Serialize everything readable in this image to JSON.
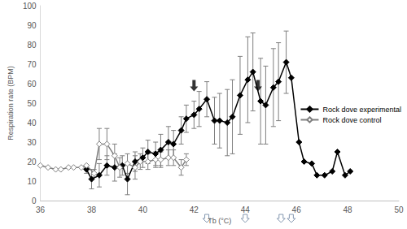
{
  "chart_data": {
    "type": "line",
    "x_label": "Tb (°C)",
    "y_label": "Respiration rate (BPM)",
    "xlim": [
      36,
      50
    ],
    "xticks": [
      36,
      38,
      40,
      42,
      44,
      46,
      48,
      50
    ],
    "ylim": [
      0,
      100
    ],
    "yticks": [
      0,
      10,
      20,
      30,
      40,
      50,
      60,
      70,
      80,
      90,
      100
    ],
    "grid": false,
    "legend": "right",
    "series": [
      {
        "name": "Rock dove experimental",
        "color": "#000000",
        "marker": "diamond",
        "line_style": "solid",
        "x": [
          37.8,
          38.0,
          38.3,
          38.6,
          38.9,
          39.2,
          39.4,
          39.7,
          40.0,
          40.2,
          40.5,
          40.7,
          41.0,
          41.2,
          41.5,
          41.7,
          42.0,
          42.2,
          42.5,
          42.8,
          43.0,
          43.3,
          43.5,
          43.8,
          44.1,
          44.3,
          44.6,
          44.8,
          45.1,
          45.3,
          45.6,
          45.8,
          46.1,
          46.3,
          46.6,
          46.8,
          47.1,
          47.4,
          47.6,
          47.9,
          48.1
        ],
        "values": [
          16,
          11,
          13,
          18,
          17,
          18,
          11,
          20,
          22,
          25,
          24,
          26,
          30,
          29,
          36,
          42,
          44,
          47,
          52,
          41,
          41,
          40,
          43,
          54,
          62,
          66,
          51,
          49,
          58,
          61,
          71,
          63,
          30,
          20,
          19,
          13,
          13,
          15,
          25,
          13,
          15
        ],
        "errors": [
          2,
          5,
          6,
          5,
          7,
          5,
          8,
          5,
          5,
          6,
          6,
          8,
          8,
          7,
          7,
          7,
          7,
          9,
          9,
          12,
          14,
          17,
          19,
          20,
          22,
          20,
          22,
          20,
          20,
          20,
          16,
          null,
          null,
          null,
          null,
          null,
          null,
          null,
          null,
          null,
          null
        ]
      },
      {
        "name": "Rock dove control",
        "color": "#7f7f7f",
        "marker": "open_diamond",
        "line_style": "solid",
        "x": [
          36.0,
          36.3,
          36.6,
          36.8,
          37.1,
          37.3,
          37.6,
          37.8,
          38.1,
          38.3,
          38.6,
          38.9,
          39.1,
          39.4,
          39.7,
          39.9,
          40.2,
          40.5,
          40.7,
          41.0,
          41.2,
          41.5,
          41.7
        ],
        "values": [
          18,
          17,
          16,
          16,
          17,
          17,
          17,
          18,
          14,
          29,
          29,
          23,
          17,
          19,
          17,
          20,
          20,
          21,
          21,
          22,
          22,
          17,
          21
        ],
        "errors": [
          null,
          null,
          null,
          null,
          null,
          null,
          null,
          null,
          2,
          8,
          8,
          6,
          5,
          5,
          6,
          4,
          4,
          4,
          4,
          4,
          4,
          4,
          3
        ]
      }
    ],
    "filled_arrows": {
      "x": [
        42.0,
        44.5
      ],
      "y": [
        56,
        56
      ]
    },
    "open_arrows_x": [
      42.5,
      44.0,
      45.4,
      45.8
    ]
  }
}
